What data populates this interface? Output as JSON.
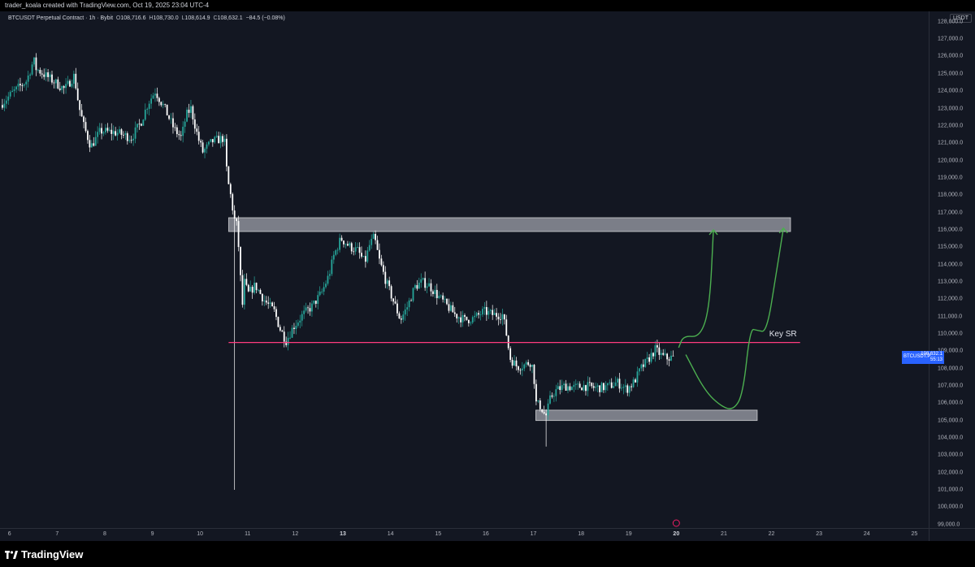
{
  "header": {
    "attribution": "trader_koala created with TradingView.com, Oct 19, 2025 23:04 UTC-4"
  },
  "legend": {
    "symbol": "BTCUSDT Perpetual Contract · 1h · Bybit",
    "open_label": "O",
    "open": "108,716.6",
    "high_label": "H",
    "high": "108,730.0",
    "low_label": "L",
    "low": "108,614.9",
    "close_label": "C",
    "close": "108,632.1",
    "change": "−84.5 (−0.08%)"
  },
  "currency_badge": "USDT",
  "current_price": {
    "symbol": "BTCUSDT.P",
    "price": "108,632.1",
    "countdown": "55:13"
  },
  "annotation": {
    "key_sr": "Key SR"
  },
  "footer": {
    "brand": "TradingView"
  },
  "colors": {
    "up": "#26a69a",
    "down": "#ffffff",
    "background": "#131722",
    "support_line": "#ff3b7f",
    "zone": "#d1d4dc",
    "arrows": "#4caf50",
    "accent": "#2962ff"
  },
  "chart_data": {
    "type": "candlestick",
    "timeframe": "1h",
    "x_ticks": [
      "6",
      "7",
      "8",
      "9",
      "10",
      "11",
      "12",
      "13",
      "14",
      "15",
      "16",
      "17",
      "18",
      "19",
      "20",
      "21",
      "22",
      "23",
      "24",
      "25"
    ],
    "x_ticks_bold": [
      "13",
      "20"
    ],
    "y_ticks": [
      "128,000.0",
      "127,000.0",
      "126,000.0",
      "125,000.0",
      "124,000.0",
      "123,000.0",
      "122,000.0",
      "121,000.0",
      "120,000.0",
      "119,000.0",
      "118,000.0",
      "117,000.0",
      "116,000.0",
      "115,000.0",
      "114,000.0",
      "113,000.0",
      "112,000.0",
      "111,000.0",
      "110,000.0",
      "109,000.0",
      "108,000.0",
      "107,000.0",
      "106,000.0",
      "105,000.0",
      "104,000.0",
      "103,000.0",
      "102,000.0",
      "101,000.0",
      "100,000.0",
      "99,000.0"
    ],
    "ylim": [
      98800,
      128600
    ],
    "xlim": [
      5.8,
      25.3
    ],
    "price_path": [
      [
        5.85,
        123200
      ],
      [
        6.1,
        123900
      ],
      [
        6.4,
        124600
      ],
      [
        6.55,
        125800
      ],
      [
        6.6,
        125300
      ],
      [
        6.9,
        124700
      ],
      [
        7.2,
        124100
      ],
      [
        7.4,
        124900
      ],
      [
        7.5,
        123100
      ],
      [
        7.6,
        122000
      ],
      [
        7.75,
        120800
      ],
      [
        7.95,
        121700
      ],
      [
        8.3,
        121600
      ],
      [
        8.6,
        121300
      ],
      [
        8.8,
        122200
      ],
      [
        8.95,
        123300
      ],
      [
        9.1,
        124000
      ],
      [
        9.3,
        123000
      ],
      [
        9.5,
        121800
      ],
      [
        9.65,
        121300
      ],
      [
        9.75,
        122600
      ],
      [
        9.85,
        123000
      ],
      [
        10.0,
        121300
      ],
      [
        10.1,
        120500
      ],
      [
        10.3,
        121100
      ],
      [
        10.55,
        121300
      ],
      [
        10.6,
        119500
      ],
      [
        10.65,
        118400
      ],
      [
        10.7,
        117800
      ],
      [
        10.75,
        116700
      ],
      [
        10.82,
        116200
      ],
      [
        10.87,
        114300
      ],
      [
        10.9,
        112800
      ],
      [
        10.93,
        111500
      ],
      [
        10.96,
        113100
      ],
      [
        11.05,
        112300
      ],
      [
        11.2,
        112800
      ],
      [
        11.4,
        111900
      ],
      [
        11.6,
        111300
      ],
      [
        11.72,
        110300
      ],
      [
        11.85,
        109600
      ],
      [
        12.0,
        110400
      ],
      [
        12.2,
        111100
      ],
      [
        12.4,
        111600
      ],
      [
        12.6,
        112400
      ],
      [
        12.75,
        113400
      ],
      [
        12.85,
        114500
      ],
      [
        13.0,
        115500
      ],
      [
        13.2,
        115000
      ],
      [
        13.35,
        114800
      ],
      [
        13.5,
        114100
      ],
      [
        13.6,
        115100
      ],
      [
        13.7,
        115600
      ],
      [
        13.8,
        114300
      ],
      [
        13.95,
        113000
      ],
      [
        14.1,
        111900
      ],
      [
        14.25,
        110800
      ],
      [
        14.4,
        111600
      ],
      [
        14.55,
        112700
      ],
      [
        14.7,
        113000
      ],
      [
        14.85,
        112800
      ],
      [
        15.0,
        112300
      ],
      [
        15.2,
        111700
      ],
      [
        15.4,
        111100
      ],
      [
        15.6,
        110800
      ],
      [
        15.8,
        110900
      ],
      [
        16.0,
        111300
      ],
      [
        16.2,
        111100
      ],
      [
        16.4,
        111100
      ],
      [
        16.48,
        109900
      ],
      [
        16.55,
        108600
      ],
      [
        16.7,
        108100
      ],
      [
        16.85,
        108200
      ],
      [
        17.0,
        108400
      ],
      [
        17.05,
        107600
      ],
      [
        17.1,
        106000
      ],
      [
        17.2,
        105800
      ],
      [
        17.3,
        105200
      ],
      [
        17.4,
        106300
      ],
      [
        17.5,
        106700
      ],
      [
        17.7,
        107000
      ],
      [
        17.9,
        106900
      ],
      [
        18.1,
        107000
      ],
      [
        18.3,
        106900
      ],
      [
        18.5,
        106900
      ],
      [
        18.65,
        107000
      ],
      [
        18.8,
        107200
      ],
      [
        19.0,
        106800
      ],
      [
        19.15,
        107200
      ],
      [
        19.3,
        108000
      ],
      [
        19.45,
        108500
      ],
      [
        19.6,
        109100
      ],
      [
        19.75,
        108700
      ],
      [
        19.85,
        108600
      ],
      [
        19.95,
        108632
      ]
    ],
    "current_price": 108632.1,
    "levels": [
      {
        "type": "zone",
        "price_low": 115900,
        "price_high": 116700,
        "x_start": 10.6,
        "x_end": 22.4
      },
      {
        "type": "line",
        "price": 109500,
        "x_start": 10.6,
        "x_end": 22.6,
        "label": "Key SR"
      },
      {
        "type": "zone",
        "price_low": 105000,
        "price_high": 105600,
        "x_start": 17.05,
        "x_end": 21.7
      }
    ],
    "projections": [
      {
        "path": [
          [
            20.05,
            109200
          ],
          [
            20.15,
            109900
          ],
          [
            20.5,
            109800
          ],
          [
            20.7,
            111500
          ],
          [
            20.78,
            116000
          ]
        ]
      },
      {
        "path": [
          [
            20.2,
            108800
          ],
          [
            20.6,
            106700
          ],
          [
            20.95,
            105800
          ],
          [
            21.2,
            105600
          ],
          [
            21.4,
            106500
          ],
          [
            21.55,
            110300
          ],
          [
            21.7,
            110200
          ],
          [
            21.9,
            110100
          ],
          [
            22.1,
            113500
          ],
          [
            22.25,
            116100
          ]
        ]
      }
    ],
    "wicks_extreme": [
      {
        "x": 10.72,
        "low": 101000
      },
      {
        "x": 17.25,
        "low": 103500
      }
    ]
  }
}
